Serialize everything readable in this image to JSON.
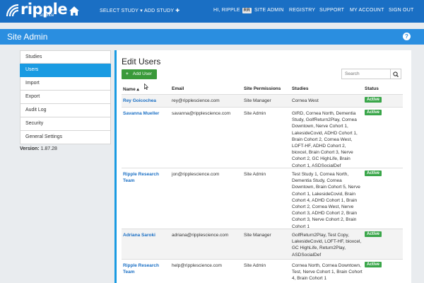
{
  "nav": {
    "logo_text": "ripple",
    "logo_sub": "science",
    "select_study": "SELECT STUDY ▾",
    "add_study": "ADD STUDY ✚",
    "greeting": "HI, RIPPLE",
    "initials": "RR",
    "site_admin": "SITE ADMIN",
    "registry": "REGISTRY",
    "support": "SUPPORT",
    "my_account": "MY ACCOUNT",
    "sign_out": "SIGN OUT"
  },
  "page": {
    "title": "Site Admin",
    "help": "?"
  },
  "sidebar": {
    "items": [
      {
        "label": "Studies"
      },
      {
        "label": "Users"
      },
      {
        "label": "Import"
      },
      {
        "label": "Export"
      },
      {
        "label": "Audit Log"
      },
      {
        "label": "Security"
      },
      {
        "label": "General Settings"
      }
    ],
    "active_index": 1,
    "version_label": "Version:",
    "version_value": "1.87.28"
  },
  "main": {
    "title": "Edit Users",
    "add_user_plus": "+",
    "add_user_label": "Add User",
    "search_placeholder": "Search",
    "columns": {
      "name": "Name ▴",
      "email": "Email",
      "permissions": "Site Permissions",
      "studies": "Studies",
      "status": "Status"
    },
    "rows": [
      {
        "name": "Rey Goicochea",
        "email": "rey@ripplescience.com",
        "permissions": "Site Manager",
        "studies": "Cornea West",
        "status": "Active"
      },
      {
        "name": "Savanna Mueller",
        "email": "savanna@ripplescience.com",
        "permissions": "Site Admin",
        "studies": "GIRD, Cornea North, Dementia Study, GolfReturn2Play, Cornea Downtown, Nerve Cohort 1, LakesideCovid, ADHD Cohort 1, Brain Cohort 2, Cornea West, LOFT-HF, ADHD Cohort 2, bioxcel, Brain Cohort 3, Nerve Cohort 2, GC HighLife, Brain Cohort 1, ASDSocialDef",
        "status": "Active"
      },
      {
        "name": "Ripple Research Team",
        "email": "jon@ripplescience.com",
        "permissions": "Site Admin",
        "studies": "Test Study 1, Cornea North, Dementia Study, Cornea Downtown, Brain Cohort 5, Nerve Cohort 1, LakesideCovid, Brain Cohort 4, ADHD Cohort 1, Brain Cohort 2, Cornea West, Nerve Cohort 3, ADHD Cohort 2, Brain Cohort 3, Nerve Cohort 2, Brain Cohort 1",
        "status": "Active"
      },
      {
        "name": "Adriana Saroki",
        "email": "adriana@ripplescience.com",
        "permissions": "Site Manager",
        "studies": "GolfReturn2Play, Test Copy, LakesideCovid, LOFT-HF, bioxcel, GC HighLife, Return2Play, ASDSocialDef",
        "status": "Active"
      },
      {
        "name": "Ripple Research Team",
        "email": "help@ripplescience.com",
        "permissions": "Site Admin",
        "studies": "Cornea North, Cornea Downtown, Test, Nerve Cohort 1, Brain Cohort 4, Brain Cohort 1",
        "status": "Active"
      }
    ]
  },
  "colors": {
    "nav_bg": "#1a6fc4",
    "header_bg": "#2a8ee0",
    "accent": "#1a9be2",
    "success": "#3aa64a"
  }
}
